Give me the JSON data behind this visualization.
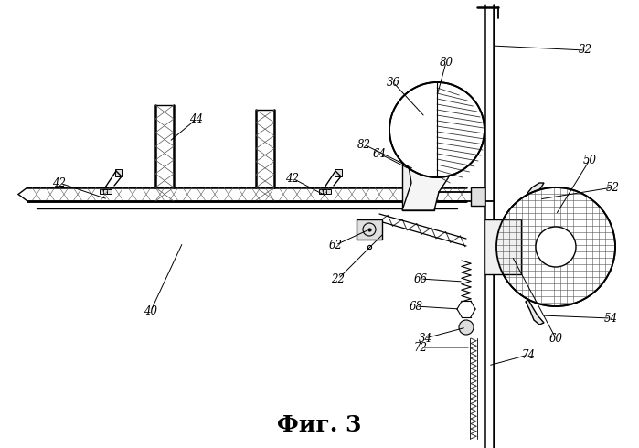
{
  "title": "Фиг. 3",
  "title_fontsize": 18,
  "background_color": "#ffffff",
  "fig_width": 6.99,
  "fig_height": 4.9,
  "dpi": 100
}
